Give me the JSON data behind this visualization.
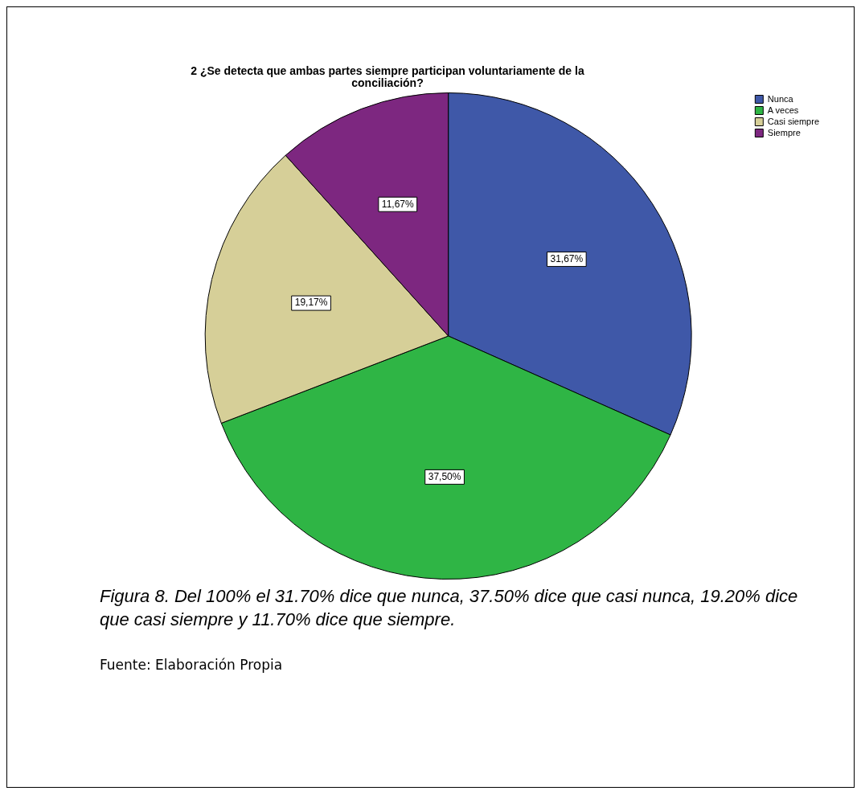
{
  "chart_data": {
    "type": "pie",
    "title": "2 ¿Se detecta que ambas partes siempre participan voluntariamente de la conciliación?",
    "categories": [
      "Nunca",
      "A veces",
      "Casi siempre",
      "Siempre"
    ],
    "values": [
      31.67,
      37.5,
      19.17,
      11.67
    ],
    "colors": [
      "#3f58a8",
      "#2fb545",
      "#d6cf98",
      "#7d2780"
    ],
    "value_labels": [
      "31,67%",
      "37,50%",
      "19,17%",
      "11,67%"
    ],
    "legend": "top right",
    "annotations": [
      "Figura 8. Del 100% el 31.70% dice que nunca, 37.50% dice que casi nunca, 19.20% dice que casi siempre y 11.70% dice que siempre.",
      "Fuente: Elaboración Propia"
    ]
  }
}
